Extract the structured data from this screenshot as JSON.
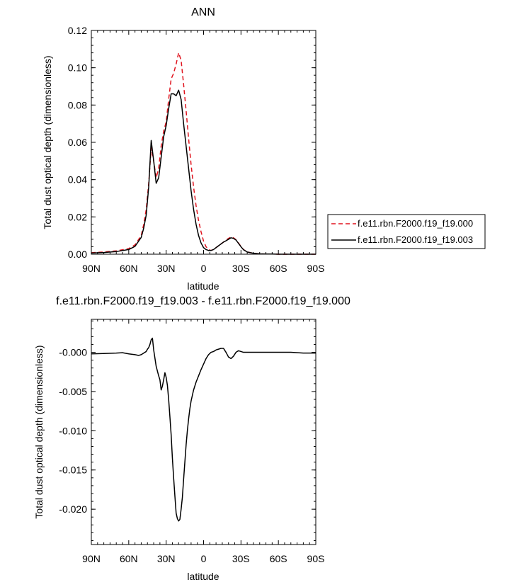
{
  "chart_data": [
    {
      "type": "line",
      "title": "ANN",
      "xlabel": "latitude",
      "ylabel": "Total dust optical depth (dimensionless)",
      "xlim": [
        90,
        -90
      ],
      "ylim": [
        0,
        0.12
      ],
      "xticks": [
        90,
        60,
        30,
        0,
        -30,
        -60,
        -90
      ],
      "xtick_labels": [
        "90N",
        "60N",
        "30N",
        "0",
        "30S",
        "60S",
        "90S"
      ],
      "yticks": [
        0,
        0.02,
        0.04,
        0.06,
        0.08,
        0.1,
        0.12
      ],
      "ytick_labels": [
        "0.00",
        "0.02",
        "0.04",
        "0.06",
        "0.08",
        "0.10",
        "0.12"
      ],
      "legend_position": "right",
      "series": [
        {
          "name": "f.e11.rbn.F2000.f19_f19.000",
          "color": "#e0141e",
          "dash": "dashed",
          "x": [
            90,
            80,
            70,
            60,
            55,
            50,
            48,
            46,
            44,
            42,
            40,
            38,
            36,
            34,
            32,
            30,
            28,
            26,
            24,
            22,
            20,
            18,
            16,
            14,
            12,
            10,
            8,
            6,
            4,
            2,
            0,
            -2,
            -4,
            -6,
            -8,
            -10,
            -12,
            -14,
            -16,
            -18,
            -20,
            -22,
            -24,
            -26,
            -28,
            -30,
            -32,
            -35,
            -40,
            -45,
            -50,
            -55,
            -60,
            -70,
            -80,
            -90
          ],
          "y": [
            0.0008,
            0.0012,
            0.0018,
            0.003,
            0.005,
            0.01,
            0.016,
            0.024,
            0.038,
            0.057,
            0.05,
            0.041,
            0.046,
            0.058,
            0.066,
            0.071,
            0.083,
            0.094,
            0.097,
            0.102,
            0.108,
            0.104,
            0.091,
            0.077,
            0.062,
            0.048,
            0.036,
            0.026,
            0.018,
            0.012,
            0.007,
            0.004,
            0.0025,
            0.002,
            0.0025,
            0.0035,
            0.0045,
            0.0055,
            0.0065,
            0.0075,
            0.0085,
            0.0092,
            0.0088,
            0.0078,
            0.006,
            0.0042,
            0.0025,
            0.0012,
            0.0005,
            0.0002,
            0.0001,
            0.0001,
            0.0,
            0.0,
            0.0,
            0.0
          ]
        },
        {
          "name": "f.e11.rbn.F2000.f19_f19.003",
          "color": "#000000",
          "dash": "solid",
          "x": [
            90,
            80,
            70,
            60,
            55,
            50,
            48,
            46,
            44,
            42,
            40,
            38,
            36,
            34,
            32,
            30,
            28,
            26,
            24,
            22,
            20,
            18,
            16,
            14,
            12,
            10,
            8,
            6,
            4,
            2,
            0,
            -2,
            -4,
            -6,
            -8,
            -10,
            -12,
            -14,
            -16,
            -18,
            -20,
            -22,
            -24,
            -26,
            -28,
            -30,
            -32,
            -35,
            -40,
            -45,
            -50,
            -55,
            -60,
            -70,
            -80,
            -90
          ],
          "y": [
            0.0006,
            0.0009,
            0.0014,
            0.0025,
            0.0042,
            0.009,
            0.014,
            0.021,
            0.036,
            0.061,
            0.05,
            0.038,
            0.041,
            0.052,
            0.063,
            0.069,
            0.078,
            0.086,
            0.086,
            0.085,
            0.088,
            0.083,
            0.07,
            0.058,
            0.046,
            0.034,
            0.024,
            0.016,
            0.01,
            0.006,
            0.0035,
            0.0025,
            0.002,
            0.002,
            0.0025,
            0.0035,
            0.0045,
            0.0055,
            0.0065,
            0.0072,
            0.008,
            0.0088,
            0.0085,
            0.0076,
            0.0058,
            0.004,
            0.0024,
            0.0012,
            0.0005,
            0.0002,
            0.0001,
            0.0001,
            0.0,
            0.0,
            0.0,
            0.0
          ]
        }
      ]
    },
    {
      "type": "line",
      "title": "f.e11.rbn.F2000.f19_f19.003 - f.e11.rbn.F2000.f19_f19.000",
      "xlabel": "latitude",
      "ylabel": "Total dust optical depth (dimensionless)",
      "xlim": [
        90,
        -90
      ],
      "ylim": [
        -0.0245,
        0.0042
      ],
      "xticks": [
        90,
        60,
        30,
        0,
        -30,
        -60,
        -90
      ],
      "xtick_labels": [
        "90N",
        "60N",
        "30N",
        "0",
        "30S",
        "60S",
        "90S"
      ],
      "yticks": [
        0,
        -0.005,
        -0.01,
        -0.015,
        -0.02
      ],
      "ytick_labels": [
        "-0.000",
        "-0.005",
        "-0.010",
        "-0.015",
        "-0.020"
      ],
      "series": [
        {
          "color": "#000000",
          "dash": "solid",
          "x": [
            90,
            80,
            70,
            65,
            60,
            55,
            52,
            50,
            48,
            46,
            45,
            44,
            43,
            42,
            41,
            40,
            38,
            36,
            35,
            34,
            33,
            32,
            31,
            30,
            29,
            28,
            27,
            26,
            25,
            24,
            23,
            22,
            21,
            20,
            19,
            18,
            17,
            16,
            15,
            14,
            13,
            12,
            11,
            10,
            9,
            8,
            6,
            4,
            2,
            0,
            -2,
            -4,
            -6,
            -8,
            -10,
            -12,
            -14,
            -16,
            -18,
            -20,
            -22,
            -24,
            -26,
            -28,
            -30,
            -32,
            -35,
            -40,
            -50,
            -60,
            -70,
            -80,
            -90
          ],
          "y": [
            -0.0002,
            -0.00015,
            -0.0001,
            -5e-05,
            -0.0002,
            -0.0003,
            -0.0004,
            -0.0003,
            -0.0001,
            0.0001,
            0.0004,
            0.0006,
            0.001,
            0.0016,
            0.0018,
            0.0003,
            -0.0018,
            -0.003,
            -0.0035,
            -0.0048,
            -0.0043,
            -0.0035,
            -0.0026,
            -0.0032,
            -0.0042,
            -0.006,
            -0.0082,
            -0.0105,
            -0.0135,
            -0.016,
            -0.0183,
            -0.0205,
            -0.0212,
            -0.0215,
            -0.0213,
            -0.02,
            -0.0185,
            -0.0162,
            -0.014,
            -0.0118,
            -0.01,
            -0.0085,
            -0.0072,
            -0.0062,
            -0.0055,
            -0.0048,
            -0.0038,
            -0.003,
            -0.0022,
            -0.0015,
            -0.0008,
            -0.0003,
            0.0,
            0.0001,
            0.0003,
            0.0004,
            0.0005,
            0.0005,
            0.0,
            -0.0006,
            -0.0008,
            -0.0005,
            0.0,
            0.0002,
            0.0001,
            0.0,
            0.0,
            0.0,
            0.0,
            0.0,
            0.0,
            -0.0001,
            -0.0001
          ]
        }
      ]
    }
  ]
}
